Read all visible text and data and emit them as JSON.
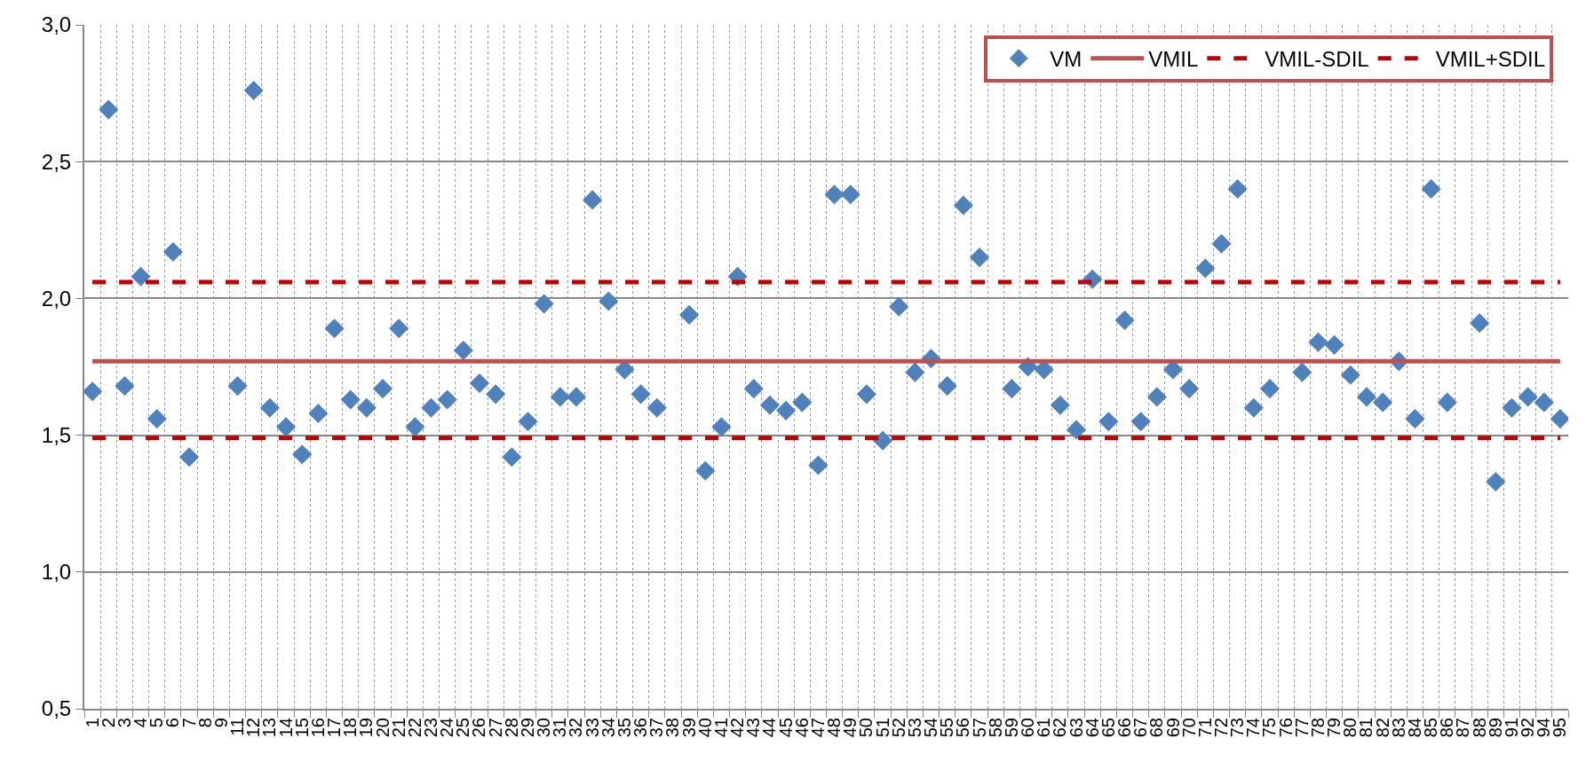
{
  "chart_data": {
    "type": "scatter",
    "categories": [
      "1",
      "2",
      "3",
      "4",
      "5",
      "6",
      "7",
      "8",
      "9",
      "11",
      "12",
      "13",
      "14",
      "15",
      "16",
      "17",
      "18",
      "19",
      "20",
      "21",
      "22",
      "23",
      "24",
      "25",
      "26",
      "27",
      "28",
      "29",
      "30",
      "31",
      "32",
      "33",
      "34",
      "35",
      "36",
      "37",
      "38",
      "39",
      "40",
      "41",
      "42",
      "43",
      "44",
      "45",
      "46",
      "47",
      "48",
      "49",
      "50",
      "51",
      "52",
      "53",
      "54",
      "55",
      "56",
      "57",
      "58",
      "59",
      "60",
      "61",
      "62",
      "63",
      "64",
      "65",
      "66",
      "67",
      "68",
      "69",
      "70",
      "71",
      "72",
      "73",
      "74",
      "75",
      "76",
      "77",
      "78",
      "79",
      "80",
      "81",
      "82",
      "83",
      "84",
      "85",
      "86",
      "87",
      "88",
      "89",
      "91",
      "92",
      "94",
      "95"
    ],
    "series": [
      {
        "name": "VM",
        "color": "#4f81bd",
        "marker": "diamond",
        "values": [
          1.66,
          2.69,
          1.68,
          2.08,
          1.56,
          2.17,
          1.42,
          null,
          null,
          1.68,
          2.76,
          1.6,
          1.53,
          1.43,
          1.58,
          1.89,
          1.63,
          1.6,
          1.67,
          1.89,
          1.53,
          1.6,
          1.63,
          1.81,
          1.69,
          1.65,
          1.42,
          1.55,
          1.98,
          1.64,
          1.64,
          2.36,
          1.99,
          1.74,
          1.65,
          1.6,
          null,
          1.94,
          1.37,
          1.53,
          2.08,
          1.67,
          1.61,
          1.59,
          1.62,
          1.39,
          2.38,
          2.38,
          1.65,
          1.48,
          1.97,
          1.73,
          1.78,
          1.68,
          2.34,
          2.15,
          null,
          1.67,
          1.75,
          1.74,
          1.61,
          1.52,
          2.07,
          1.55,
          1.92,
          1.55,
          1.64,
          1.74,
          1.67,
          2.11,
          2.2,
          2.4,
          1.6,
          1.67,
          null,
          1.73,
          1.84,
          1.83,
          1.72,
          1.64,
          1.62,
          1.77,
          1.56,
          2.4,
          1.62,
          null,
          1.91,
          1.33,
          1.6,
          1.64,
          1.62,
          1.56
        ]
      },
      {
        "name": "VMIL",
        "type": "line",
        "color": "#c0504d",
        "line_style": "solid",
        "values": [
          1.77,
          1.77,
          1.77,
          1.77,
          1.77,
          1.77,
          1.77,
          1.77,
          1.77,
          1.77,
          1.77,
          1.77,
          1.77,
          1.77,
          1.77,
          1.77,
          1.77,
          1.77,
          1.77,
          1.77,
          1.77,
          1.77,
          1.77,
          1.77,
          1.77,
          1.77,
          1.77,
          1.77,
          1.77,
          1.77,
          1.77,
          1.77,
          1.77,
          1.77,
          1.77,
          1.77,
          1.77,
          1.77,
          1.77,
          1.77,
          1.77,
          1.77,
          1.77,
          1.77,
          1.77,
          1.77,
          1.77,
          1.77,
          1.77,
          1.77,
          1.77,
          1.77,
          1.77,
          1.77,
          1.77,
          1.77,
          1.77,
          1.77,
          1.77,
          1.77,
          1.77,
          1.77,
          1.77,
          1.77,
          1.77,
          1.77,
          1.77,
          1.77,
          1.77,
          1.77,
          1.77,
          1.77,
          1.77,
          1.77,
          1.77,
          1.77,
          1.77,
          1.77,
          1.77,
          1.77,
          1.77,
          1.77,
          1.77,
          1.77,
          1.77,
          1.77,
          1.77,
          1.77,
          1.77,
          1.77,
          1.77,
          1.77
        ]
      },
      {
        "name": "VMIL-SDIL",
        "type": "line",
        "color": "#c00000",
        "line_style": "dashed",
        "values": [
          1.49,
          1.49,
          1.49,
          1.49,
          1.49,
          1.49,
          1.49,
          1.49,
          1.49,
          1.49,
          1.49,
          1.49,
          1.49,
          1.49,
          1.49,
          1.49,
          1.49,
          1.49,
          1.49,
          1.49,
          1.49,
          1.49,
          1.49,
          1.49,
          1.49,
          1.49,
          1.49,
          1.49,
          1.49,
          1.49,
          1.49,
          1.49,
          1.49,
          1.49,
          1.49,
          1.49,
          1.49,
          1.49,
          1.49,
          1.49,
          1.49,
          1.49,
          1.49,
          1.49,
          1.49,
          1.49,
          1.49,
          1.49,
          1.49,
          1.49,
          1.49,
          1.49,
          1.49,
          1.49,
          1.49,
          1.49,
          1.49,
          1.49,
          1.49,
          1.49,
          1.49,
          1.49,
          1.49,
          1.49,
          1.49,
          1.49,
          1.49,
          1.49,
          1.49,
          1.49,
          1.49,
          1.49,
          1.49,
          1.49,
          1.49,
          1.49,
          1.49,
          1.49,
          1.49,
          1.49,
          1.49,
          1.49,
          1.49,
          1.49,
          1.49,
          1.49,
          1.49,
          1.49,
          1.49,
          1.49,
          1.49,
          1.49
        ]
      },
      {
        "name": "VMIL+SDIL",
        "type": "line",
        "color": "#c00000",
        "line_style": "dashed",
        "values": [
          2.06,
          2.06,
          2.06,
          2.06,
          2.06,
          2.06,
          2.06,
          2.06,
          2.06,
          2.06,
          2.06,
          2.06,
          2.06,
          2.06,
          2.06,
          2.06,
          2.06,
          2.06,
          2.06,
          2.06,
          2.06,
          2.06,
          2.06,
          2.06,
          2.06,
          2.06,
          2.06,
          2.06,
          2.06,
          2.06,
          2.06,
          2.06,
          2.06,
          2.06,
          2.06,
          2.06,
          2.06,
          2.06,
          2.06,
          2.06,
          2.06,
          2.06,
          2.06,
          2.06,
          2.06,
          2.06,
          2.06,
          2.06,
          2.06,
          2.06,
          2.06,
          2.06,
          2.06,
          2.06,
          2.06,
          2.06,
          2.06,
          2.06,
          2.06,
          2.06,
          2.06,
          2.06,
          2.06,
          2.06,
          2.06,
          2.06,
          2.06,
          2.06,
          2.06,
          2.06,
          2.06,
          2.06,
          2.06,
          2.06,
          2.06,
          2.06,
          2.06,
          2.06,
          2.06,
          2.06,
          2.06,
          2.06,
          2.06,
          2.06,
          2.06,
          2.06,
          2.06,
          2.06,
          2.06,
          2.06,
          2.06,
          2.06
        ]
      }
    ],
    "ylim": [
      0.5,
      3.0
    ],
    "yticks": [
      {
        "value": 0.5,
        "label": "0,5"
      },
      {
        "value": 1.0,
        "label": "1,0"
      },
      {
        "value": 1.5,
        "label": "1,5"
      },
      {
        "value": 2.0,
        "label": "2,0"
      },
      {
        "value": 2.5,
        "label": "2,5"
      },
      {
        "value": 3.0,
        "label": "3,0"
      }
    ],
    "grid": true,
    "legend": "top right"
  }
}
